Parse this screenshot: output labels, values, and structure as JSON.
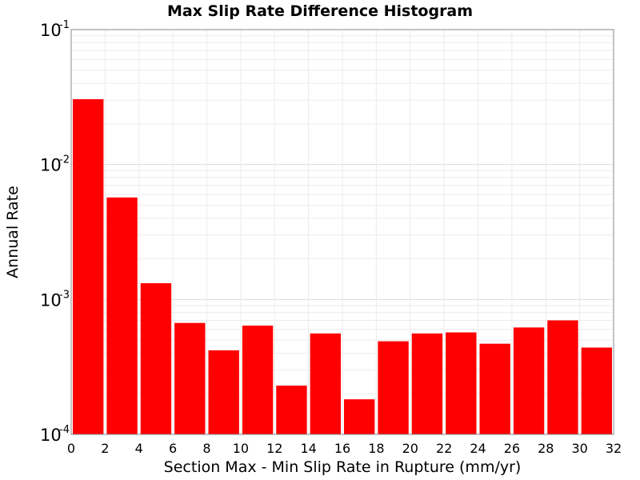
{
  "chart_data": {
    "type": "bar",
    "title": "Max Slip Rate Difference Histogram",
    "xlabel": "Section Max - Min Slip Rate in Rupture (mm/yr)",
    "ylabel": "Annual Rate",
    "xlim": [
      0,
      32
    ],
    "ylim": [
      0.0001,
      0.1
    ],
    "yscale": "log",
    "grid": true,
    "bar_color": "#ff0000",
    "x_ticks": [
      "0",
      "2",
      "4",
      "6",
      "8",
      "10",
      "12",
      "14",
      "16",
      "18",
      "20",
      "22",
      "24",
      "26",
      "28",
      "30",
      "32"
    ],
    "y_ticks": [
      {
        "base": "10",
        "exp": "-4"
      },
      {
        "base": "10",
        "exp": "-3"
      },
      {
        "base": "10",
        "exp": "-2"
      },
      {
        "base": "10",
        "exp": "-1"
      }
    ],
    "bins": [
      {
        "x0": 0,
        "x1": 2,
        "value": 0.0305
      },
      {
        "x0": 2,
        "x1": 4,
        "value": 0.0057
      },
      {
        "x0": 4,
        "x1": 6,
        "value": 0.00132
      },
      {
        "x0": 6,
        "x1": 8,
        "value": 0.00067
      },
      {
        "x0": 8,
        "x1": 10,
        "value": 0.00042
      },
      {
        "x0": 10,
        "x1": 12,
        "value": 0.00064
      },
      {
        "x0": 12,
        "x1": 14,
        "value": 0.00023
      },
      {
        "x0": 14,
        "x1": 16,
        "value": 0.00056
      },
      {
        "x0": 16,
        "x1": 18,
        "value": 0.000182
      },
      {
        "x0": 18,
        "x1": 20,
        "value": 0.00049
      },
      {
        "x0": 20,
        "x1": 22,
        "value": 0.00056
      },
      {
        "x0": 22,
        "x1": 24,
        "value": 0.00057
      },
      {
        "x0": 24,
        "x1": 26,
        "value": 0.00047
      },
      {
        "x0": 26,
        "x1": 28,
        "value": 0.00062
      },
      {
        "x0": 28,
        "x1": 30,
        "value": 0.0007
      },
      {
        "x0": 30,
        "x1": 32,
        "value": 0.00044
      }
    ]
  }
}
